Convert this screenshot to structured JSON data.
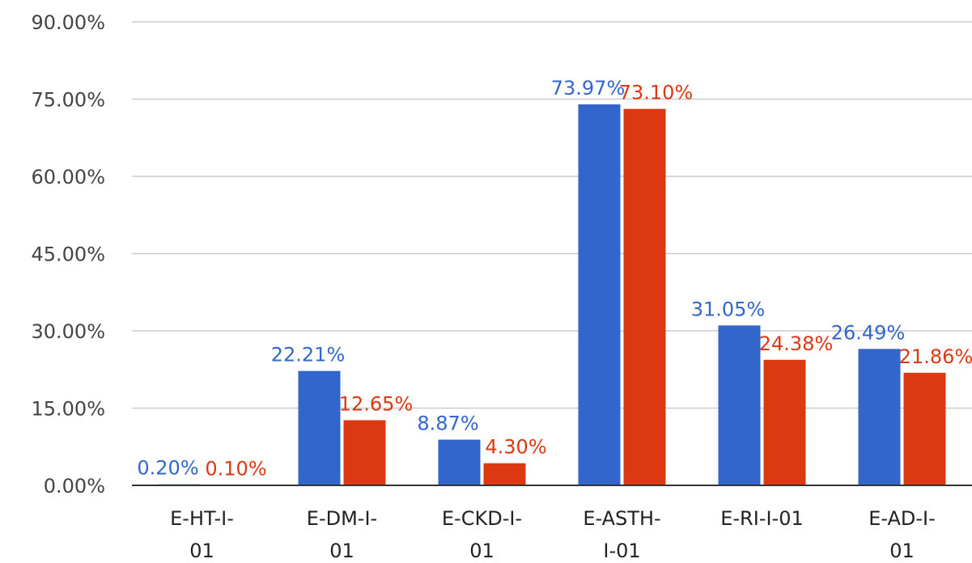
{
  "chart_data": {
    "type": "bar",
    "title": "",
    "xlabel": "",
    "ylabel": "",
    "ylim": [
      0,
      90
    ],
    "y_ticks": [
      "0.00%",
      "15.00%",
      "30.00%",
      "45.00%",
      "60.00%",
      "75.00%",
      "90.00%"
    ],
    "y_tick_values": [
      0,
      15,
      30,
      45,
      60,
      75,
      90
    ],
    "grid": true,
    "legend": "none",
    "categories": [
      [
        "E-HT-I-",
        "01"
      ],
      [
        "E-DM-I-",
        "01"
      ],
      [
        "E-CKD-I-",
        "01"
      ],
      [
        "E-ASTH-",
        "I-01"
      ],
      [
        "E-RI-I-01",
        ""
      ],
      [
        "E-AD-I-",
        "01"
      ]
    ],
    "series": [
      {
        "color": "#3366cc",
        "values": [
          0.2,
          22.21,
          8.87,
          73.97,
          31.05,
          26.49
        ],
        "labels": [
          "0.20%",
          "22.21%",
          "8.87%",
          "73.97%",
          "31.05%",
          "26.49%"
        ]
      },
      {
        "color": "#dc3912",
        "values": [
          0.1,
          12.65,
          4.3,
          73.1,
          24.38,
          21.86
        ],
        "labels": [
          "0.10%",
          "12.65%",
          "4.30%",
          "73.10%",
          "24.38%",
          "21.86%"
        ]
      }
    ]
  }
}
